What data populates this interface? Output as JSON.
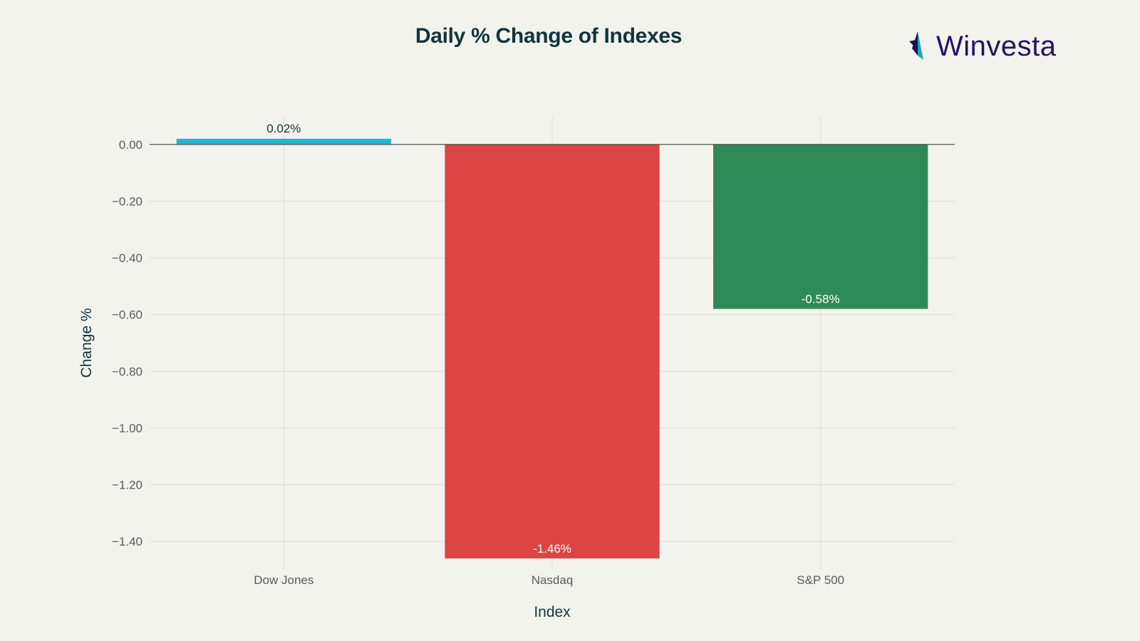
{
  "brand": {
    "name": "Winvesta",
    "colors": {
      "logo_text": "#25135f",
      "logo_dark": "#1e0e55",
      "logo_teal": "#1aa8b8"
    }
  },
  "chart_data": {
    "type": "bar",
    "title": "Daily % Change of Indexes",
    "xlabel": "Index",
    "ylabel": "Change %",
    "categories": [
      "Dow Jones",
      "Nasdaq",
      "S&P 500"
    ],
    "values": [
      0.02,
      -1.46,
      -0.58
    ],
    "data_labels": [
      "0.02%",
      "-1.46%",
      "-0.58%"
    ],
    "colors": [
      "#1fb8cd",
      "#db4545",
      "#2e8b57"
    ],
    "ylim": [
      -1.5,
      0.1
    ],
    "yticks": [
      0,
      -0.2,
      -0.4,
      -0.6,
      -0.8,
      -1.0,
      -1.2,
      -1.4
    ],
    "ytick_labels": [
      "0.00",
      "−0.20",
      "−0.40",
      "−0.60",
      "−0.80",
      "−1.00",
      "−1.20",
      "−1.40"
    ],
    "grid": true,
    "legend": "none",
    "background": "#f3f3ee",
    "grid_color": "#dcdcd6",
    "zero_line_color": "#444444",
    "title_color": "#13343b",
    "tick_color": "#5a5a5a"
  }
}
